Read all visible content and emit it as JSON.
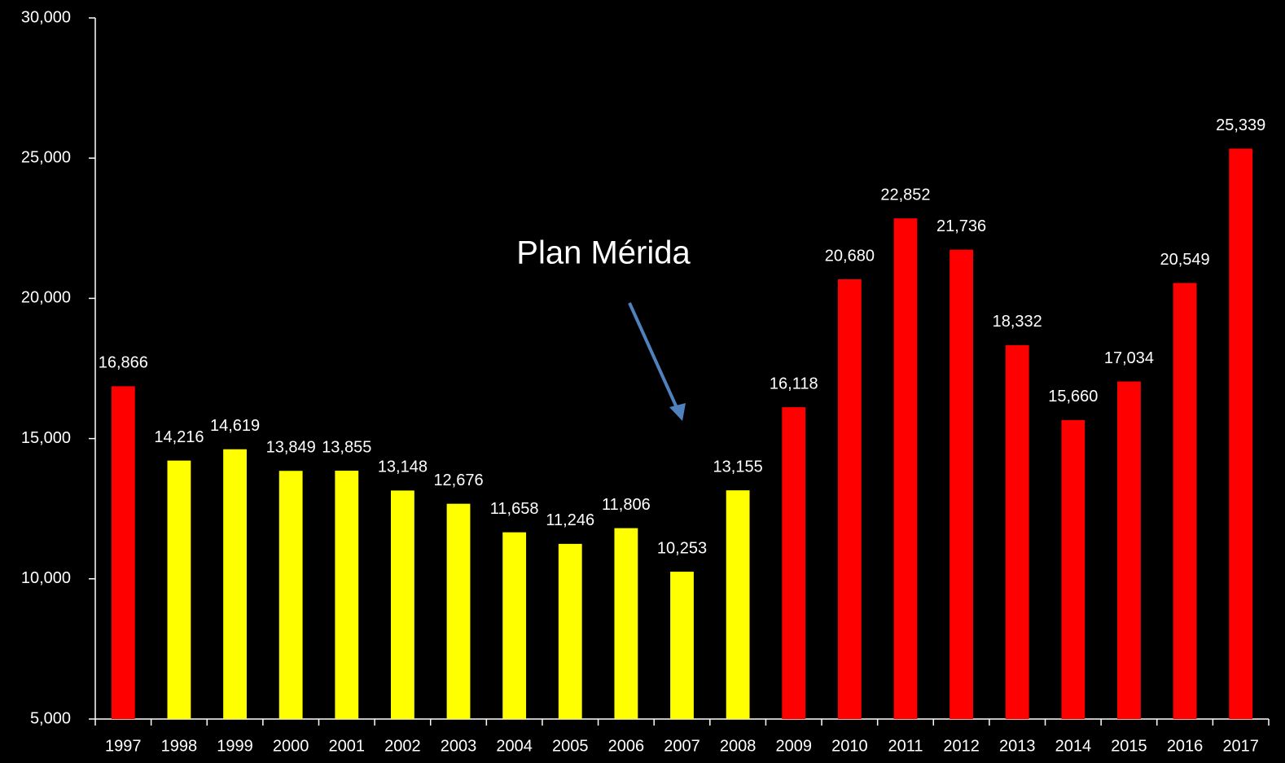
{
  "chart_data": {
    "type": "bar",
    "categories": [
      "1997",
      "1998",
      "1999",
      "2000",
      "2001",
      "2002",
      "2003",
      "2004",
      "2005",
      "2006",
      "2007",
      "2008",
      "2009",
      "2010",
      "2011",
      "2012",
      "2013",
      "2014",
      "2015",
      "2016",
      "2017"
    ],
    "values": [
      16866,
      14216,
      14619,
      13849,
      13855,
      13148,
      12676,
      11658,
      11246,
      11806,
      10253,
      13155,
      16118,
      20680,
      22852,
      21736,
      18332,
      15660,
      17034,
      20549,
      25339
    ],
    "value_labels": [
      "16,866",
      "14,216",
      "14,619",
      "13,849",
      "13,855",
      "13,148",
      "12,676",
      "11,658",
      "11,246",
      "11,806",
      "10,253",
      "13,155",
      "16,118",
      "20,680",
      "22,852",
      "21,736",
      "18,332",
      "15,660",
      "17,034",
      "20,549",
      "25,339"
    ],
    "colors": [
      "#ff0000",
      "#ffff00",
      "#ffff00",
      "#ffff00",
      "#ffff00",
      "#ffff00",
      "#ffff00",
      "#ffff00",
      "#ffff00",
      "#ffff00",
      "#ffff00",
      "#ffff00",
      "#ff0000",
      "#ff0000",
      "#ff0000",
      "#ff0000",
      "#ff0000",
      "#ff0000",
      "#ff0000",
      "#ff0000",
      "#ff0000"
    ],
    "ylim": [
      5000,
      30000
    ],
    "yticks": [
      {
        "value": 5000,
        "label": "5,000"
      },
      {
        "value": 10000,
        "label": "10,000"
      },
      {
        "value": 15000,
        "label": "15,000"
      },
      {
        "value": 20000,
        "label": "20,000"
      },
      {
        "value": 25000,
        "label": "25,000"
      },
      {
        "value": 30000,
        "label": "30,000"
      }
    ],
    "annotation": "Plan Mérida",
    "grid": false
  }
}
